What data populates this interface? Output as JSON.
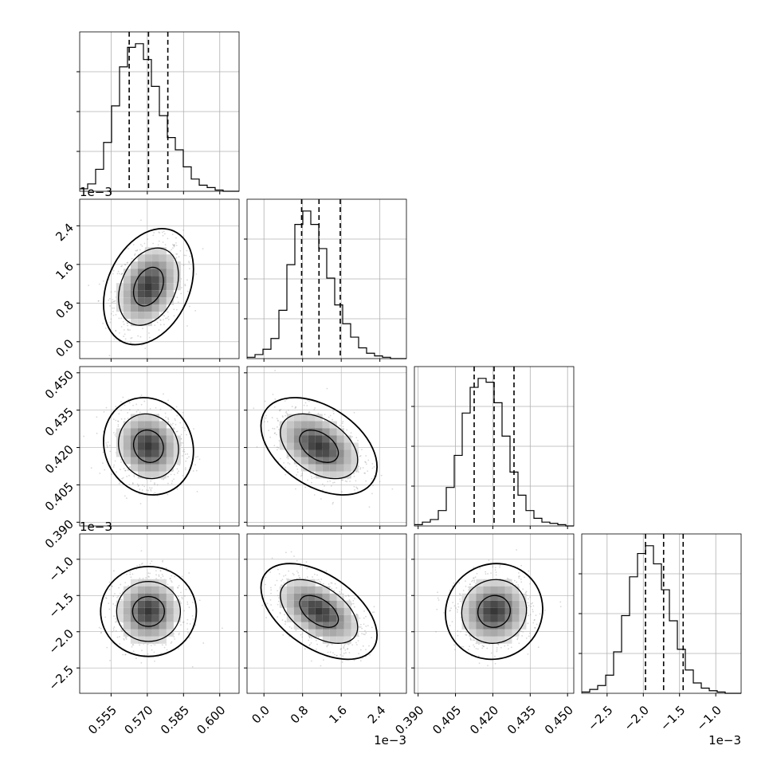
{
  "chart_data": {
    "type": "corner",
    "colors": {
      "ink": "#000000",
      "grid": "#b0b0b0",
      "points": "#8c8c8c",
      "panel_border": "#000000"
    },
    "grid": true,
    "parameters": [
      {
        "index": 0,
        "range": [
          0.542,
          0.608
        ],
        "ticks": [
          0.555,
          0.57,
          0.585,
          0.6
        ],
        "tick_labels": [
          "0.555",
          "0.570",
          "0.585",
          "0.600"
        ],
        "offset_label": "",
        "quantiles": [
          0.5625,
          0.5705,
          0.5785
        ],
        "mean": 0.5705,
        "sd": 0.0062
      },
      {
        "index": 1,
        "range": [
          -0.00035,
          0.00295
        ],
        "ticks": [
          0.0,
          0.0008,
          0.0016,
          0.0024
        ],
        "tick_labels": [
          "0.0",
          "0.8",
          "1.6",
          "2.4"
        ],
        "offset_label": "1e−3",
        "quantiles": [
          0.00078,
          0.00114,
          0.00158
        ],
        "mean": 0.00114,
        "sd": 0.0004
      },
      {
        "index": 2,
        "range": [
          0.3885,
          0.4525
        ],
        "ticks": [
          0.39,
          0.405,
          0.42,
          0.435,
          0.45
        ],
        "tick_labels": [
          "0.390",
          "0.405",
          "0.420",
          "0.435",
          "0.450"
        ],
        "offset_label": "",
        "quantiles": [
          0.4125,
          0.4205,
          0.4285
        ],
        "mean": 0.4205,
        "sd": 0.0065
      },
      {
        "index": 3,
        "range": [
          -0.00285,
          -0.00065
        ],
        "ticks": [
          -0.0025,
          -0.002,
          -0.0015,
          -0.001
        ],
        "tick_labels": [
          "−2.5",
          "−2.0",
          "−1.5",
          "−1.0"
        ],
        "offset_label": "1e−3",
        "quantiles": [
          -0.00197,
          -0.00172,
          -0.00145
        ],
        "mean": -0.00172,
        "sd": 0.00022
      }
    ],
    "correlations": {
      "1-0": 0.3,
      "2-0": -0.1,
      "2-1": -0.42,
      "3-0": 0.0,
      "3-1": -0.5,
      "3-2": 0.05
    },
    "histogram_bins": 20,
    "histogram_counts": [
      [
        2,
        6,
        18,
        40,
        70,
        102,
        118,
        121,
        108,
        86,
        62,
        44,
        34,
        20,
        10,
        5,
        3,
        1,
        0,
        0
      ],
      [
        1,
        3,
        7,
        15,
        36,
        70,
        100,
        110,
        100,
        82,
        60,
        40,
        26,
        16,
        8,
        4,
        2,
        1,
        0,
        0
      ],
      [
        1,
        3,
        5,
        12,
        30,
        55,
        88,
        108,
        115,
        112,
        96,
        70,
        42,
        24,
        12,
        6,
        3,
        2,
        1,
        0
      ],
      [
        1,
        3,
        6,
        14,
        32,
        60,
        90,
        108,
        114,
        100,
        80,
        56,
        34,
        18,
        8,
        4,
        2,
        1,
        0,
        0
      ]
    ],
    "contour_levels": [
      0.393,
      0.865,
      0.989
    ]
  }
}
